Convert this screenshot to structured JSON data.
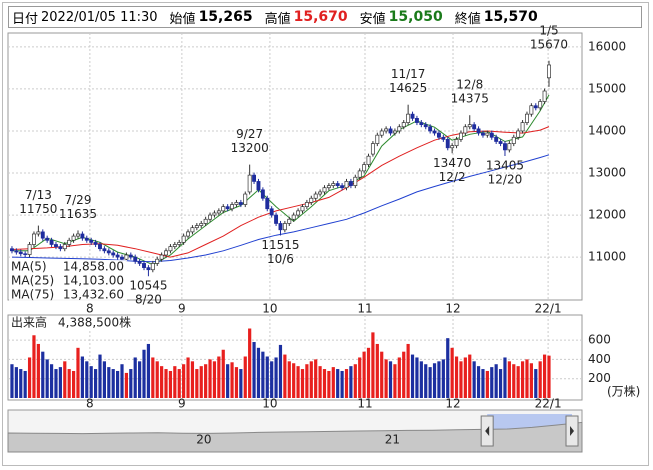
{
  "header": {
    "fields": [
      {
        "label": "日付",
        "value": "2022/01/05 11:30"
      },
      {
        "label": "始値",
        "value": "15,265"
      },
      {
        "label": "高値",
        "value": "15,670",
        "color": "#e02020"
      },
      {
        "label": "安値",
        "value": "15,050",
        "color": "#1a7a1a"
      },
      {
        "label": "終値",
        "value": "15,570"
      }
    ]
  },
  "chart_data": {
    "type": "candlestick",
    "open": [
      11200,
      11150,
      11120,
      11080,
      11060,
      11300,
      11550,
      11600,
      11450,
      11400,
      11300,
      11250,
      11200,
      11300,
      11400,
      11500,
      11550,
      11450,
      11400,
      11350,
      11300,
      11200,
      11150,
      11100,
      11050,
      11000,
      10950,
      11050,
      11000,
      10900,
      10850,
      10750,
      10700,
      10850,
      10950,
      11050,
      11150,
      11250,
      11300,
      11350,
      11500,
      11600,
      11700,
      11750,
      11800,
      11900,
      12000,
      12050,
      12100,
      12200,
      12150,
      12250,
      12300,
      12250,
      12550,
      12950,
      12800,
      12600,
      12400,
      12150,
      12000,
      11800,
      11650,
      11800,
      11900,
      12000,
      12100,
      12200,
      12300,
      12400,
      12500,
      12550,
      12650,
      12700,
      12750,
      12700,
      12650,
      12800,
      12700,
      12900,
      13050,
      13200,
      13450,
      13700,
      13900,
      14000,
      14050,
      13950,
      14000,
      14100,
      14200,
      14400,
      14300,
      14200,
      14150,
      14100,
      14000,
      13950,
      13850,
      13800,
      13600,
      13650,
      13800,
      13950,
      14100,
      14150,
      14050,
      13950,
      13900,
      13950,
      13850,
      13750,
      13700,
      13550,
      13700,
      13850,
      14000,
      14200,
      14400,
      14600,
      14550,
      14700,
      15265
    ],
    "high": [
      11260,
      11210,
      11180,
      11140,
      11360,
      11610,
      11750,
      11660,
      11510,
      11460,
      11360,
      11310,
      11360,
      11460,
      11560,
      11635,
      11610,
      11510,
      11460,
      11410,
      11360,
      11260,
      11210,
      11160,
      11110,
      11060,
      11110,
      11110,
      11060,
      10960,
      10910,
      10810,
      10910,
      11010,
      11110,
      11210,
      11310,
      11360,
      11410,
      11560,
      11660,
      11760,
      11810,
      11860,
      11960,
      12060,
      12110,
      12160,
      12260,
      12260,
      12310,
      12360,
      12360,
      12560,
      13200,
      13010,
      12860,
      12660,
      12460,
      12210,
      12060,
      11860,
      11860,
      11960,
      12060,
      12160,
      12260,
      12360,
      12460,
      12560,
      12610,
      12710,
      12760,
      12810,
      12810,
      12760,
      12860,
      12860,
      12960,
      13110,
      13260,
      13460,
      13760,
      13960,
      14060,
      14110,
      14110,
      14060,
      14160,
      14260,
      14625,
      14460,
      14360,
      14260,
      14210,
      14160,
      14060,
      14010,
      13910,
      13860,
      13710,
      13860,
      14010,
      14160,
      14375,
      14210,
      14110,
      14010,
      14010,
      14010,
      13910,
      13810,
      13760,
      13760,
      13910,
      14060,
      14260,
      14460,
      14660,
      14660,
      14760,
      15010,
      15670
    ],
    "low": [
      11090,
      11060,
      11020,
      11000,
      11000,
      11240,
      11490,
      11390,
      11340,
      11240,
      11190,
      11140,
      11140,
      11240,
      11340,
      11440,
      11390,
      11340,
      11290,
      11240,
      11140,
      11090,
      11040,
      10990,
      10940,
      10890,
      10890,
      10940,
      10840,
      10790,
      10690,
      10545,
      10640,
      10790,
      10890,
      10990,
      11090,
      11190,
      11240,
      11290,
      11440,
      11540,
      11640,
      11690,
      11740,
      11840,
      11940,
      11990,
      12040,
      12090,
      12090,
      12190,
      12190,
      12190,
      12490,
      12740,
      12540,
      12340,
      12090,
      11940,
      11740,
      11515,
      11590,
      11740,
      11840,
      11940,
      12040,
      12140,
      12240,
      12340,
      12440,
      12490,
      12590,
      12640,
      12640,
      12590,
      12590,
      12640,
      12640,
      12840,
      12990,
      13140,
      13390,
      13640,
      13840,
      13940,
      13890,
      13890,
      13940,
      14040,
      14140,
      14240,
      14140,
      14090,
      14040,
      13940,
      13890,
      13790,
      13740,
      13540,
      13470,
      13590,
      13740,
      13890,
      14040,
      13990,
      13890,
      13840,
      13840,
      13790,
      13690,
      13640,
      13405,
      13490,
      13640,
      13790,
      13940,
      14140,
      14340,
      14490,
      14490,
      14640,
      15050
    ],
    "close": [
      11150,
      11120,
      11080,
      11060,
      11300,
      11550,
      11600,
      11450,
      11400,
      11300,
      11250,
      11200,
      11300,
      11400,
      11500,
      11550,
      11450,
      11400,
      11350,
      11300,
      11200,
      11150,
      11100,
      11050,
      11000,
      10950,
      11050,
      11000,
      10900,
      10850,
      10750,
      10700,
      10850,
      10950,
      11050,
      11150,
      11250,
      11300,
      11350,
      11500,
      11600,
      11700,
      11750,
      11800,
      11900,
      12000,
      12050,
      12100,
      12200,
      12150,
      12250,
      12300,
      12250,
      12500,
      12950,
      12800,
      12600,
      12400,
      12150,
      12000,
      11800,
      11650,
      11800,
      11900,
      12000,
      12100,
      12200,
      12300,
      12400,
      12500,
      12550,
      12650,
      12700,
      12750,
      12700,
      12650,
      12800,
      12700,
      12900,
      13050,
      13200,
      13400,
      13700,
      13900,
      14000,
      14050,
      13950,
      14000,
      14100,
      14200,
      14400,
      14300,
      14200,
      14150,
      14100,
      14000,
      13950,
      13850,
      13800,
      13600,
      13650,
      13800,
      13950,
      14100,
      14150,
      14050,
      13950,
      13900,
      13950,
      13850,
      13750,
      13700,
      13550,
      13700,
      13850,
      14000,
      14200,
      14400,
      14600,
      14550,
      14700,
      14950,
      15570
    ],
    "up_color": "#ffffff",
    "down_color": "#1f2d9e",
    "xlim": [
      -0.9,
      129.5
    ],
    "xticks": [
      {
        "value": 17.7,
        "label": "8"
      },
      {
        "value": 38.6,
        "label": "9"
      },
      {
        "value": 58.6,
        "label": "10"
      },
      {
        "value": 80.2,
        "label": "11"
      },
      {
        "value": 100.2,
        "label": "12"
      },
      {
        "value": 121.8,
        "label": "22/1"
      }
    ],
    "ylim": [
      9980,
      16330
    ],
    "yticks": [
      11000,
      12000,
      13000,
      14000,
      15000,
      16000
    ],
    "grid": true,
    "annotations": [
      {
        "date": "7/13",
        "value": 11750
      },
      {
        "date": "7/29",
        "value": 11635
      },
      {
        "date": "8/20",
        "value": 10545
      },
      {
        "date": "9/27",
        "value": 13200
      },
      {
        "date": "10/6",
        "value": 11515
      },
      {
        "date": "11/17",
        "value": 14625
      },
      {
        "date": "12/2",
        "value": 13470
      },
      {
        "date": "12/8",
        "value": 14375
      },
      {
        "date": "12/20",
        "value": 13405
      },
      {
        "date": "1/5",
        "value": 15670
      }
    ],
    "ma_x": [
      0,
      4,
      8,
      12,
      16,
      20,
      24,
      28,
      32,
      36,
      40,
      44,
      48,
      52,
      56,
      60,
      64,
      68,
      72,
      76,
      80,
      84,
      88,
      92,
      96,
      100,
      104,
      108,
      112,
      116,
      120,
      122
    ],
    "series": [
      {
        "name": "MA(5)",
        "color": "#2e8b2e",
        "legend_label": "14,858.00",
        "values": [
          11150,
          11150,
          11450,
          11320,
          11470,
          11350,
          11120,
          11000,
          10820,
          11050,
          11430,
          11750,
          12060,
          12230,
          12600,
          12200,
          11850,
          12200,
          12580,
          12710,
          12930,
          13640,
          14030,
          14240,
          14090,
          13780,
          13920,
          13990,
          13750,
          13860,
          14480,
          14858
        ]
      },
      {
        "name": "MA(25)",
        "color": "#e02020",
        "legend_label": "14,103.00",
        "values": [
          11180,
          11200,
          11220,
          11250,
          11300,
          11320,
          11280,
          11200,
          11100,
          11000,
          11100,
          11300,
          11500,
          11750,
          11950,
          12100,
          12200,
          12300,
          12420,
          12650,
          12900,
          13180,
          13400,
          13600,
          13780,
          13900,
          13980,
          14000,
          13970,
          13950,
          14020,
          14103
        ]
      },
      {
        "name": "MA(75)",
        "color": "#2040d0",
        "legend_label": "13,432.60",
        "values": [
          11000,
          10990,
          10980,
          10970,
          10960,
          10950,
          10930,
          10900,
          10890,
          10920,
          10980,
          11050,
          11150,
          11280,
          11420,
          11520,
          11600,
          11700,
          11800,
          11900,
          12050,
          12220,
          12380,
          12550,
          12680,
          12800,
          12920,
          13030,
          13140,
          13250,
          13370,
          13432.6
        ]
      }
    ],
    "volume": {
      "title": "出来高",
      "total_label": "4,388,500株",
      "unit": "(万株)",
      "ylim": [
        0,
        860
      ],
      "yticks": [
        200,
        400,
        600
      ],
      "up_color": "#e8201e",
      "down_color": "#1c2fa0",
      "values": [
        350,
        320,
        300,
        280,
        420,
        650,
        560,
        480,
        400,
        350,
        300,
        320,
        380,
        300,
        280,
        520,
        430,
        380,
        330,
        300,
        450,
        380,
        320,
        300,
        280,
        350,
        260,
        300,
        420,
        380,
        500,
        560,
        420,
        380,
        330,
        300,
        280,
        330,
        300,
        350,
        420,
        380,
        300,
        330,
        350,
        400,
        380,
        430,
        500,
        350,
        370,
        320,
        300,
        430,
        720,
        580,
        520,
        480,
        430,
        380,
        420,
        550,
        450,
        380,
        360,
        330,
        300,
        350,
        380,
        400,
        330,
        300,
        280,
        320,
        300,
        280,
        300,
        330,
        350,
        420,
        480,
        520,
        680,
        560,
        480,
        400,
        380,
        350,
        420,
        480,
        560,
        450,
        420,
        380,
        350,
        320,
        360,
        380,
        400,
        620,
        520,
        430,
        380,
        420,
        450,
        380,
        330,
        300,
        280,
        320,
        350,
        300,
        420,
        380,
        350,
        330,
        380,
        400,
        360,
        300,
        380,
        450,
        438.85
      ]
    },
    "navigator": {
      "values": [
        9500,
        9400,
        9300,
        9200,
        9400,
        9500,
        9600,
        9400,
        9300,
        9500,
        9800,
        10000,
        10100,
        10300,
        10500,
        10600,
        10800,
        10900,
        11100,
        11300,
        11500,
        12300,
        13500,
        14800
      ],
      "ylim": [
        0,
        20000
      ],
      "xlim": [
        0,
        23
      ],
      "xticks": [
        {
          "value": 7.85,
          "label": "20"
        },
        {
          "value": 15.4,
          "label": "21"
        }
      ],
      "selection": [
        19.2,
        22.6
      ]
    }
  }
}
